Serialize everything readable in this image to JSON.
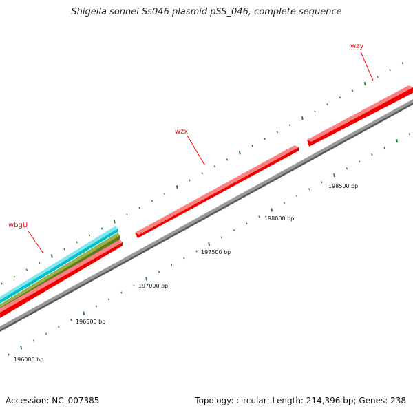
{
  "title": "Shigella sonnei Ss046 plasmid pSS_046, complete sequence",
  "footer": {
    "accession": "Accession: NC_007385",
    "summary": "Topology: circular; Length: 214,396 bp; Genes: 238"
  },
  "colors": {
    "forward_gene": "#ff0000",
    "cyan_feature": "#00c8d2",
    "olive_feature": "#6b8e23",
    "backbone": "#8c8c8c",
    "tick": "#2e7d32",
    "gene_label": "#ff0000"
  },
  "gene_labels": [
    {
      "name": "wbgU"
    },
    {
      "name": "wzx"
    },
    {
      "name": "wzy"
    }
  ],
  "bp_labels": [
    "196000 bp",
    "196500 bp",
    "197000 bp",
    "197500 bp",
    "198000 bp",
    "198500 bp"
  ]
}
